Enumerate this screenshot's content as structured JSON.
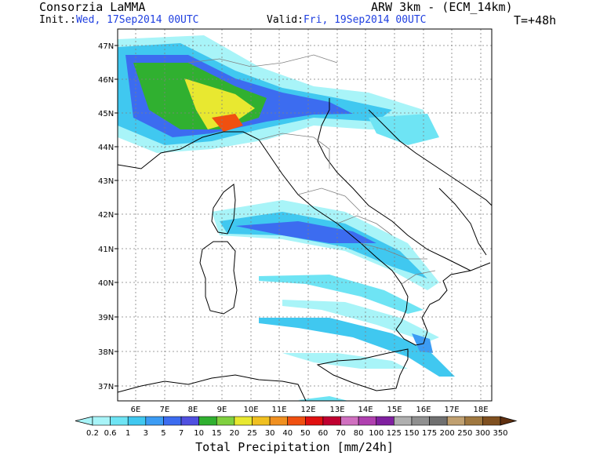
{
  "header": {
    "org": "Consorzia LaMMA",
    "model": "ARW 3km - (ECM_14km)",
    "init_label": "Init.:",
    "init_value": "Wed, 17Sep2014 00UTC",
    "valid_label": "Valid:",
    "valid_value": "Fri, 19Sep2014 00UTC",
    "lead": "T=+48h"
  },
  "map": {
    "lat_labels": [
      "47N",
      "46N",
      "45N",
      "44N",
      "43N",
      "42N",
      "41N",
      "40N",
      "39N",
      "38N",
      "37N"
    ],
    "lon_labels": [
      "6E",
      "7E",
      "8E",
      "9E",
      "10E",
      "11E",
      "12E",
      "13E",
      "14E",
      "15E",
      "16E",
      "17E",
      "18E"
    ]
  },
  "colorbar": {
    "title": "Total Precipitation [mm/24h]",
    "levels": [
      "0.2",
      "0.6",
      "1",
      "3",
      "5",
      "7",
      "10",
      "15",
      "20",
      "25",
      "30",
      "40",
      "50",
      "60",
      "70",
      "80",
      "100",
      "125",
      "150",
      "175",
      "200",
      "250",
      "300",
      "350"
    ],
    "colors": [
      "#a8f4f8",
      "#6ee4f4",
      "#40c8f0",
      "#3c9cf4",
      "#3c6cf0",
      "#5050e0",
      "#30b030",
      "#80d040",
      "#e8e830",
      "#f0c020",
      "#f09020",
      "#f05010",
      "#e01010",
      "#c00030",
      "#d070c0",
      "#b040b0",
      "#8020a0",
      "#b0b0b0",
      "#909090",
      "#707070",
      "#c0a070",
      "#a07840",
      "#805020",
      "#603010"
    ]
  }
}
